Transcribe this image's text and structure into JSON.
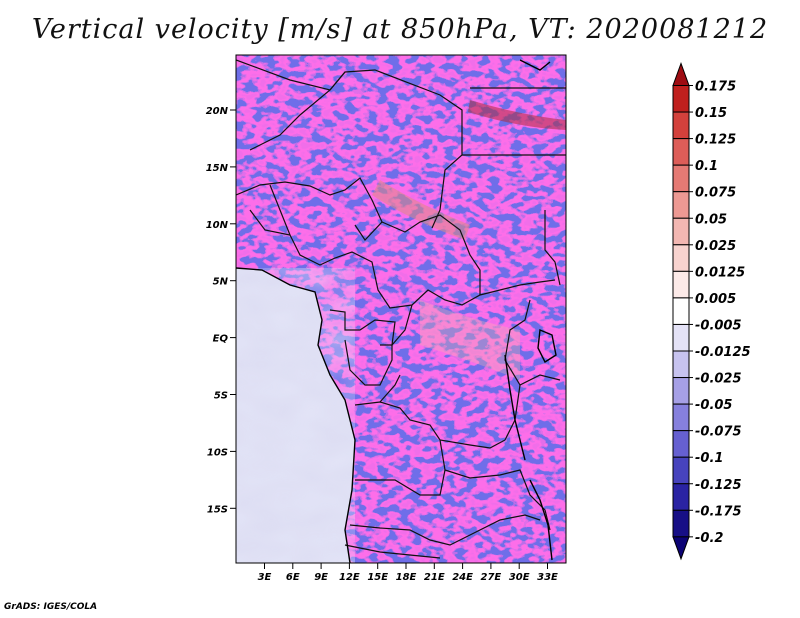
{
  "title": "Vertical velocity [m/s] at 850hPa, VT: 2020081212",
  "footer": "GrADS: IGES/COLA",
  "map": {
    "lat_labels": [
      "20N",
      "15N",
      "10N",
      "5N",
      "EQ",
      "5S",
      "10S",
      "15S"
    ],
    "lon_labels": [
      "3E",
      "6E",
      "9E",
      "12E",
      "15E",
      "18E",
      "21E",
      "24E",
      "27E",
      "30E",
      "33E"
    ],
    "field": "vertical velocity"
  },
  "colorbar": {
    "labels": [
      "0.175",
      "0.15",
      "0.125",
      "0.1",
      "0.075",
      "0.05",
      "0.025",
      "0.0125",
      "0.005",
      "-0.005",
      "-0.0125",
      "-0.025",
      "-0.05",
      "-0.075",
      "-0.1",
      "-0.125",
      "-0.175",
      "-0.2"
    ],
    "colors": [
      "#9e0c12",
      "#c0201e",
      "#d3413c",
      "#dd5d58",
      "#e57a74",
      "#ed9993",
      "#f3b7b2",
      "#f8d3cf",
      "#fceae8",
      "#ffffff",
      "#e4e2f6",
      "#c7c3ef",
      "#a6a0e6",
      "#8680dd",
      "#6660d1",
      "#4743bd",
      "#2a23a3",
      "#170f86",
      "#0c0375"
    ]
  }
}
